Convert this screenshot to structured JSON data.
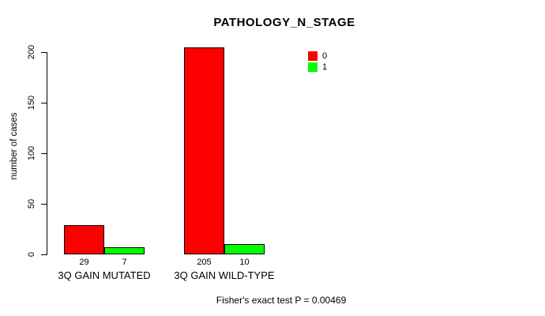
{
  "chart_data": {
    "type": "bar",
    "title": "PATHOLOGY_N_STAGE",
    "xlabel": "",
    "ylabel": "number of cases",
    "categories": [
      "3Q GAIN MUTATED",
      "3Q GAIN WILD-TYPE"
    ],
    "series": [
      {
        "name": "0",
        "color": "#ff0000",
        "values": [
          29,
          205
        ]
      },
      {
        "name": "1",
        "color": "#00ff00",
        "values": [
          7,
          10
        ]
      }
    ],
    "bar_value_labels": [
      [
        "29",
        "205"
      ],
      [
        "7",
        "10"
      ]
    ],
    "yticks": [
      0,
      50,
      100,
      150,
      200
    ],
    "ylim": [
      0,
      205
    ],
    "grid": false,
    "legend_position": "inside-top-right",
    "background": "#ffffff",
    "axis_color": "#000000",
    "bar_border_color": "#000000"
  },
  "footer": {
    "text": "Fisher's exact test P = 0.00469"
  }
}
